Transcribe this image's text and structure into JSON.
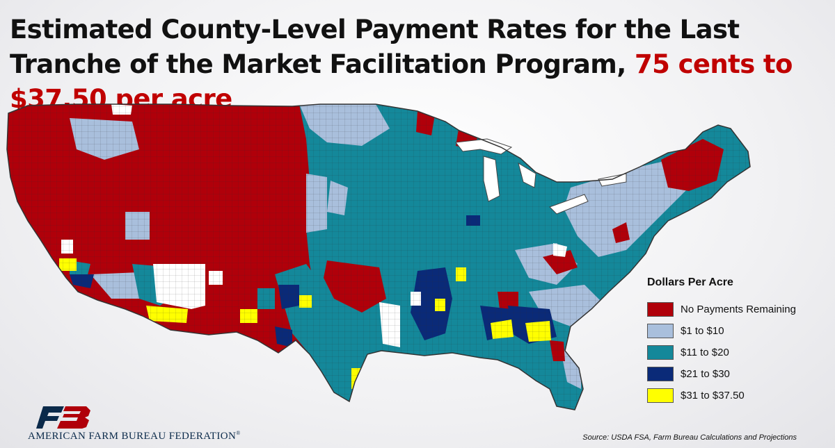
{
  "title": {
    "main": "Estimated County-Level Payment Rates for the Last Tranche of the Market Facilitation Program, ",
    "highlight": "75 cents to $37.50 per acre",
    "highlight_color": "#c00000"
  },
  "legend": {
    "title": "Dollars Per Acre",
    "items": [
      {
        "label": "No Payments Remaining",
        "color": "#b0000a"
      },
      {
        "label": "$1 to $10",
        "color": "#a9bfdc"
      },
      {
        "label": "$11 to $20",
        "color": "#14889a"
      },
      {
        "label": "$21 to $30",
        "color": "#0a2a78"
      },
      {
        "label": "$31 to $37.50",
        "color": "#ffff00"
      }
    ]
  },
  "map": {
    "subject": "Contiguous United States counties",
    "border_color": "#444444"
  },
  "footer": {
    "org_name": "AMERICAN FARM BUREAU FEDERATION",
    "org_mark": "®",
    "logo_icon": "afbf-logo-icon",
    "source": "Source: USDA FSA, Farm Bureau Calculations and Projections"
  }
}
